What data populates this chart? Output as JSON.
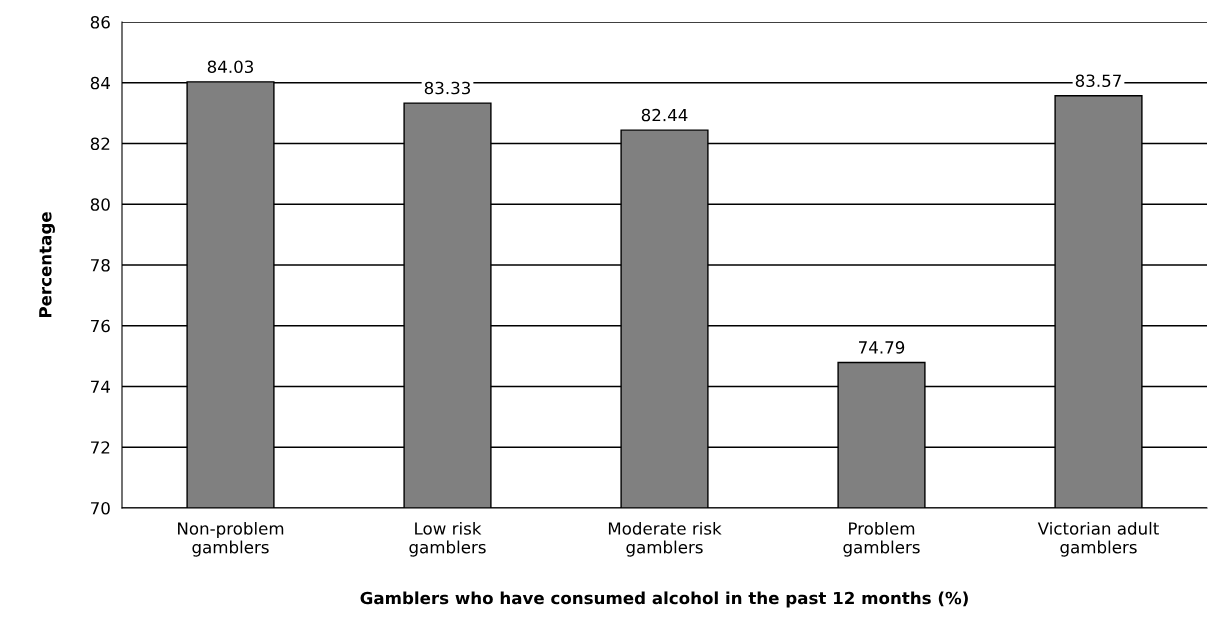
{
  "chart_data": {
    "type": "bar",
    "xlabel": "Gamblers who have consumed alcohol in the past 12 months (%)",
    "ylabel": "Percentage",
    "categories": [
      "Non-problem\ngamblers",
      "Low risk\ngamblers",
      "Moderate risk\ngamblers",
      "Problem\ngamblers",
      "Victorian adult\ngamblers"
    ],
    "values": [
      84.03,
      83.33,
      82.44,
      74.79,
      83.57
    ],
    "color": "#808080",
    "ylim": [
      70,
      86
    ],
    "yticks": [
      70,
      72,
      74,
      76,
      78,
      80,
      82,
      84,
      86
    ],
    "grid": "y",
    "data_labels": true
  }
}
